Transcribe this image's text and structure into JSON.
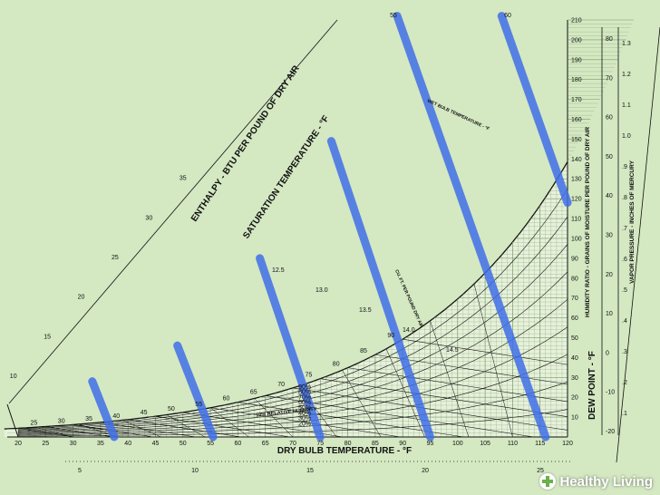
{
  "chart_data": {
    "type": "line",
    "title": "",
    "xlabel": "DRY BULB TEMPERATURE - °F",
    "ylabel_right": "HUMIDITY RATIO - GRAINS OF MOISTURE PER POUND OF DRY AIR",
    "ylabel_dewpoint": "DEW POINT - °F",
    "ylabel_vapor": "VAPOR PRESSURE - INCHES OF MERCURY",
    "saturation_label": "SATURATION TEMPERATURE - °F",
    "enthalpy_label": "ENTHALPY - BTU PER POUND OF DRY AIR",
    "wet_bulb_label": "WET BULB TEMPERATURE - °F",
    "volume_label": "CU. FT. PER POUND DRY AIR",
    "rh_label": "10% RELATIVE HUMIDITY",
    "xlim": [
      20,
      120
    ],
    "ylim": [
      0,
      210
    ],
    "x_ticks": [
      "20",
      "25",
      "30",
      "35",
      "40",
      "45",
      "50",
      "55",
      "60",
      "65",
      "70",
      "75",
      "80",
      "85",
      "90",
      "95",
      "100",
      "105",
      "110",
      "115",
      "120"
    ],
    "y_ticks": [
      "10",
      "20",
      "30",
      "40",
      "50",
      "60",
      "70",
      "80",
      "90",
      "100",
      "110",
      "120",
      "130",
      "140",
      "150",
      "160",
      "170",
      "180",
      "190",
      "200",
      "210"
    ],
    "saturation_ticks": [
      "25",
      "30",
      "35",
      "40",
      "45",
      "50",
      "55",
      "60",
      "65",
      "70",
      "75",
      "80",
      "85",
      "90"
    ],
    "top_ticks": [
      "55",
      "60"
    ],
    "enthalpy_ticks": [
      "10",
      "15",
      "20",
      "25",
      "30",
      "35"
    ],
    "bottom_scale_ticks": [
      "5",
      "10",
      "15",
      "20",
      "25"
    ],
    "dew_point_ticks": [
      "-20",
      "-10",
      "0",
      "10",
      "20",
      "30",
      "40",
      "50",
      "60",
      "70",
      "80"
    ],
    "vapor_pressure_ticks": [
      ".1",
      ".2",
      ".3",
      ".4",
      ".5",
      ".6",
      ".7",
      ".8",
      ".9",
      "1.0",
      "1.1",
      "1.2",
      "1.3"
    ],
    "rh_ticks": [
      "20%",
      "30%",
      "40%",
      "50%",
      "60%",
      "70%",
      "80%",
      "90%"
    ],
    "volume_ticks": [
      "12.5",
      "13.0",
      "13.5",
      "14.0",
      "14.5"
    ],
    "highlight_color": "#3f6fe8",
    "highlighted_lines": [
      {
        "name": "",
        "points": [
          [
            33.5,
            28
          ],
          [
            37.5,
            0
          ]
        ]
      },
      {
        "name": "",
        "points": [
          [
            49,
            46
          ],
          [
            55.5,
            0
          ]
        ]
      },
      {
        "name": "",
        "points": [
          [
            64,
            90
          ],
          [
            75,
            0
          ]
        ]
      },
      {
        "name": "",
        "points": [
          [
            77,
            149
          ],
          [
            95,
            0
          ]
        ]
      },
      {
        "name": "",
        "points": [
          [
            89,
            212
          ],
          [
            116,
            0
          ]
        ]
      },
      {
        "name": "",
        "points": [
          [
            108,
            212
          ],
          [
            120,
            118
          ]
        ]
      }
    ]
  },
  "watermark": {
    "logo_icon": "plus-circle-icon",
    "text": "Healthy Living"
  }
}
